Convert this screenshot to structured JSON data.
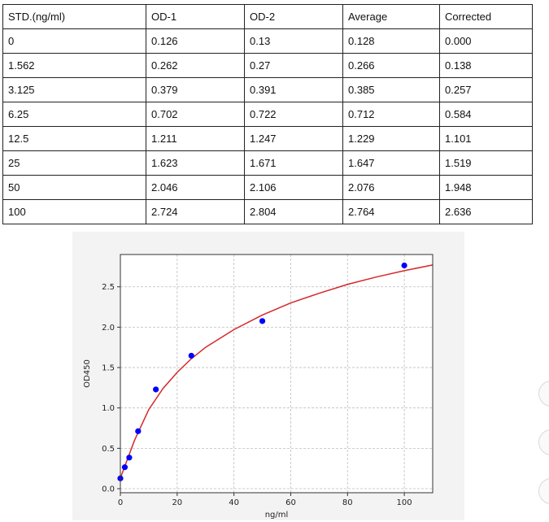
{
  "table": {
    "headers": [
      "STD.(ng/ml)",
      "OD-1",
      "OD-2",
      "Average",
      "Corrected"
    ],
    "rows": [
      [
        "0",
        "0.126",
        "0.13",
        "0.128",
        "0.000"
      ],
      [
        "1.562",
        "0.262",
        "0.27",
        "0.266",
        "0.138"
      ],
      [
        "3.125",
        "0.379",
        "0.391",
        "0.385",
        "0.257"
      ],
      [
        "6.25",
        "0.702",
        "0.722",
        "0.712",
        "0.584"
      ],
      [
        "12.5",
        "1.211",
        "1.247",
        "1.229",
        "1.101"
      ],
      [
        "25",
        "1.623",
        "1.671",
        "1.647",
        "1.519"
      ],
      [
        "50",
        "2.046",
        "2.106",
        "2.076",
        "1.948"
      ],
      [
        "100",
        "2.724",
        "2.804",
        "2.764",
        "2.636"
      ]
    ]
  },
  "chart_data": {
    "type": "scatter",
    "title": "",
    "xlabel": "ng/ml",
    "ylabel": "OD450",
    "xlim": [
      0,
      110
    ],
    "ylim": [
      -0.05,
      2.9
    ],
    "x_ticks": [
      0,
      20,
      40,
      60,
      80,
      100
    ],
    "y_ticks": [
      0.0,
      0.5,
      1.0,
      1.5,
      2.0,
      2.5
    ],
    "grid": true,
    "series": [
      {
        "type": "scatter",
        "color": "#0000ff",
        "points": [
          {
            "x": 0,
            "y": 0.128
          },
          {
            "x": 1.562,
            "y": 0.266
          },
          {
            "x": 3.125,
            "y": 0.385
          },
          {
            "x": 6.25,
            "y": 0.712
          },
          {
            "x": 12.5,
            "y": 1.229
          },
          {
            "x": 25,
            "y": 1.647
          },
          {
            "x": 50,
            "y": 2.076
          },
          {
            "x": 100,
            "y": 2.764
          }
        ]
      },
      {
        "type": "line",
        "color": "#d62728",
        "points": [
          {
            "x": 0,
            "y": 0.13
          },
          {
            "x": 2,
            "y": 0.32
          },
          {
            "x": 5,
            "y": 0.6
          },
          {
            "x": 10,
            "y": 0.98
          },
          {
            "x": 15,
            "y": 1.24
          },
          {
            "x": 20,
            "y": 1.44
          },
          {
            "x": 25,
            "y": 1.61
          },
          {
            "x": 30,
            "y": 1.75
          },
          {
            "x": 40,
            "y": 1.97
          },
          {
            "x": 50,
            "y": 2.15
          },
          {
            "x": 60,
            "y": 2.3
          },
          {
            "x": 70,
            "y": 2.42
          },
          {
            "x": 80,
            "y": 2.53
          },
          {
            "x": 90,
            "y": 2.62
          },
          {
            "x": 100,
            "y": 2.7
          },
          {
            "x": 110,
            "y": 2.77
          }
        ]
      }
    ]
  },
  "colors": {
    "chart_background": "#f3f3f3",
    "plot_background": "#ffffff",
    "grid": "#bdbdbd"
  }
}
